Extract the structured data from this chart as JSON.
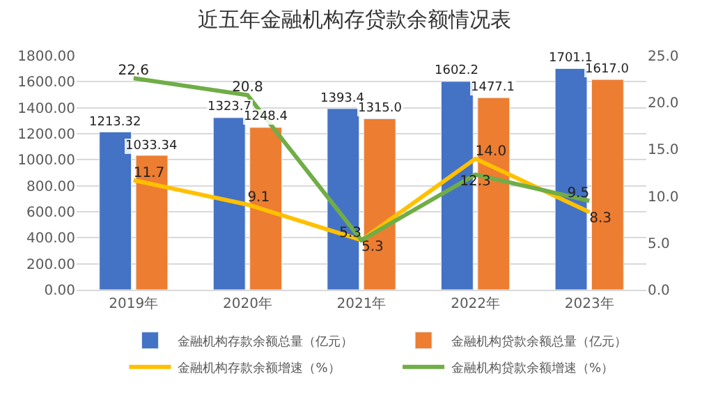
{
  "chart_data": {
    "type": "bar",
    "title": "近五年金融机构存贷款余额情况表",
    "categories": [
      "2019年",
      "2020年",
      "2021年",
      "2022年",
      "2023年"
    ],
    "series": [
      {
        "name": "金融机构存款余额总量（亿元）",
        "color": "#4472c4",
        "values": [
          1213.32,
          1323.7,
          1393.4,
          1602.2,
          1701.1
        ],
        "value_labels": [
          "1213.32",
          "1323.7",
          "1393.4",
          "1602.2",
          "1701.1"
        ]
      },
      {
        "name": "金融机构贷款余额总量（亿元）",
        "color": "#ed7d31",
        "values": [
          1033.34,
          1248.4,
          1315.0,
          1477.1,
          1617.0
        ],
        "value_labels": [
          "1033.34",
          "1248.4",
          "1315.0",
          "1477.1",
          "1617.0"
        ]
      },
      {
        "name": "金融机构存款余额增速（%）",
        "type": "line",
        "axis": "y2",
        "color": "#ffc000",
        "values": [
          11.7,
          9.1,
          5.3,
          14.0,
          8.3
        ],
        "value_labels": [
          "11.7",
          "9.1",
          "5.3",
          "14.0",
          "8.3"
        ]
      },
      {
        "name": "金融机构贷款余额增速（%）",
        "type": "line",
        "axis": "y2",
        "color": "#70ad47",
        "values": [
          22.6,
          20.8,
          5.3,
          12.3,
          9.5
        ],
        "value_labels": [
          "22.6",
          "20.8",
          "5.3",
          "12.3",
          "9.5"
        ]
      }
    ],
    "ylim": [
      0,
      1800
    ],
    "yticks": [
      {
        "value": 0,
        "label": "0.00"
      },
      {
        "value": 200,
        "label": "200.00"
      },
      {
        "value": 400,
        "label": "400.00"
      },
      {
        "value": 600,
        "label": "600.00"
      },
      {
        "value": 800,
        "label": "800.00"
      },
      {
        "value": 1000,
        "label": "1000.00"
      },
      {
        "value": 1200,
        "label": "1200.00"
      },
      {
        "value": 1400,
        "label": "1400.00"
      },
      {
        "value": 1600,
        "label": "1600.00"
      },
      {
        "value": 1800,
        "label": "1800.00"
      }
    ],
    "y2lim": [
      0,
      25
    ],
    "y2ticks": [
      {
        "value": 0,
        "label": "0.0"
      },
      {
        "value": 5,
        "label": "5.0"
      },
      {
        "value": 10,
        "label": "10.0"
      },
      {
        "value": 15,
        "label": "15.0"
      },
      {
        "value": 20,
        "label": "20.0"
      },
      {
        "value": 25,
        "label": "25.0"
      }
    ],
    "grid": "y",
    "legend": "bottom",
    "marker": "none",
    "line_style": "solid"
  }
}
